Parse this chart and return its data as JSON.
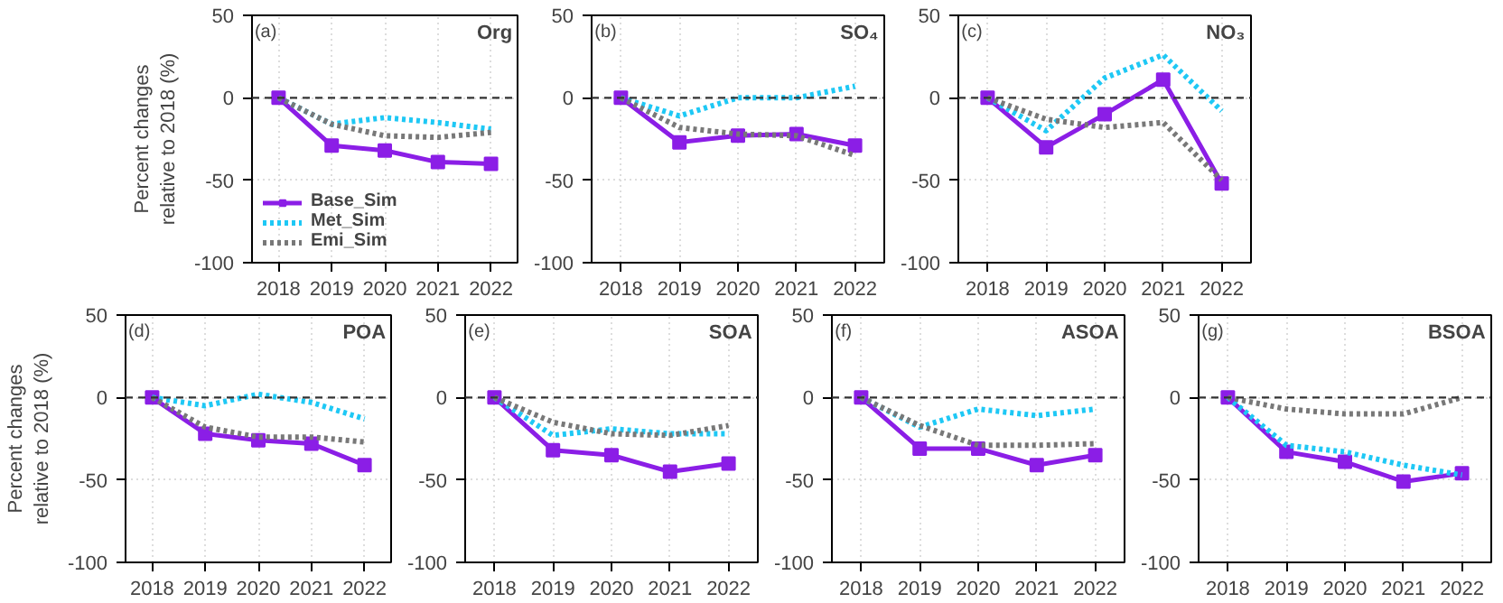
{
  "chart_data": [
    {
      "type": "line",
      "title": "Org",
      "annotations": [
        "(a)"
      ],
      "ylabel": "Percent changes relative to 2018 (%)",
      "categories": [
        "2018",
        "2019",
        "2020",
        "2021",
        "2022"
      ],
      "ylim": [
        -100,
        50
      ],
      "yticks": [
        -100,
        -50,
        0,
        50
      ],
      "grid": true,
      "legend": "bottom left",
      "ref_lines": [
        {
          "axis": "y",
          "value": 0,
          "color": "#333333",
          "line_style": "dashed"
        }
      ],
      "series": [
        {
          "name": "Base_Sim",
          "color": "#8b1ee6",
          "line_style": "solid",
          "marker": "square",
          "values": [
            0,
            -29,
            -32,
            -39,
            -40
          ]
        },
        {
          "name": "Met_Sim",
          "color": "#1ec8f5",
          "line_style": "dotted",
          "marker": "none",
          "values": [
            0,
            -16,
            -12,
            -15,
            -19
          ]
        },
        {
          "name": "Emi_Sim",
          "color": "#787878",
          "line_style": "dotted",
          "marker": "none",
          "values": [
            0,
            -16,
            -23,
            -24,
            -21
          ]
        }
      ]
    },
    {
      "type": "line",
      "title": "SO₄",
      "annotations": [
        "(b)"
      ],
      "categories": [
        "2018",
        "2019",
        "2020",
        "2021",
        "2022"
      ],
      "ylim": [
        -100,
        50
      ],
      "yticks": [
        -100,
        -50,
        0,
        50
      ],
      "grid": true,
      "ref_lines": [
        {
          "axis": "y",
          "value": 0,
          "color": "#333333",
          "line_style": "dashed"
        }
      ],
      "series": [
        {
          "color": "#8b1ee6",
          "line_style": "solid",
          "marker": "square",
          "values": [
            0,
            -27,
            -23,
            -22,
            -29
          ]
        },
        {
          "color": "#1ec8f5",
          "line_style": "dotted",
          "marker": "none",
          "values": [
            0,
            -11,
            0,
            0,
            7
          ]
        },
        {
          "color": "#787878",
          "line_style": "dotted",
          "marker": "none",
          "values": [
            0,
            -18,
            -22,
            -23,
            -35
          ]
        }
      ]
    },
    {
      "type": "line",
      "title": "NO₃",
      "annotations": [
        "(c)"
      ],
      "categories": [
        "2018",
        "2019",
        "2020",
        "2021",
        "2022"
      ],
      "ylim": [
        -100,
        50
      ],
      "yticks": [
        -100,
        -50,
        0,
        50
      ],
      "grid": true,
      "ref_lines": [
        {
          "axis": "y",
          "value": 0,
          "color": "#333333",
          "line_style": "dashed"
        }
      ],
      "series": [
        {
          "color": "#8b1ee6",
          "line_style": "solid",
          "marker": "square",
          "values": [
            0,
            -30,
            -10,
            11,
            -52
          ]
        },
        {
          "color": "#1ec8f5",
          "line_style": "dotted",
          "marker": "none",
          "values": [
            0,
            -20,
            12,
            26,
            -8
          ]
        },
        {
          "color": "#787878",
          "line_style": "dotted",
          "marker": "none",
          "values": [
            0,
            -13,
            -18,
            -15,
            -50
          ]
        }
      ]
    },
    {
      "type": "line",
      "title": "POA",
      "annotations": [
        "(d)"
      ],
      "ylabel": "Percent changes relative to 2018 (%)",
      "categories": [
        "2018",
        "2019",
        "2020",
        "2021",
        "2022"
      ],
      "ylim": [
        -100,
        50
      ],
      "yticks": [
        -100,
        -50,
        0,
        50
      ],
      "grid": true,
      "ref_lines": [
        {
          "axis": "y",
          "value": 0,
          "color": "#333333",
          "line_style": "dashed"
        }
      ],
      "series": [
        {
          "color": "#8b1ee6",
          "line_style": "solid",
          "marker": "square",
          "values": [
            0,
            -22,
            -26,
            -28,
            -41
          ]
        },
        {
          "color": "#1ec8f5",
          "line_style": "dotted",
          "marker": "none",
          "values": [
            0,
            -5,
            2,
            -3,
            -13
          ]
        },
        {
          "color": "#787878",
          "line_style": "dotted",
          "marker": "none",
          "values": [
            0,
            -18,
            -24,
            -24,
            -27
          ]
        }
      ]
    },
    {
      "type": "line",
      "title": "SOA",
      "annotations": [
        "(e)"
      ],
      "categories": [
        "2018",
        "2019",
        "2020",
        "2021",
        "2022"
      ],
      "ylim": [
        -100,
        50
      ],
      "yticks": [
        -100,
        -50,
        0,
        50
      ],
      "grid": true,
      "ref_lines": [
        {
          "axis": "y",
          "value": 0,
          "color": "#333333",
          "line_style": "dashed"
        }
      ],
      "series": [
        {
          "color": "#8b1ee6",
          "line_style": "solid",
          "marker": "square",
          "values": [
            0,
            -32,
            -35,
            -45,
            -40
          ]
        },
        {
          "color": "#1ec8f5",
          "line_style": "dotted",
          "marker": "none",
          "values": [
            0,
            -23,
            -19,
            -22,
            -22
          ]
        },
        {
          "color": "#787878",
          "line_style": "dotted",
          "marker": "none",
          "values": [
            0,
            -15,
            -22,
            -23,
            -17
          ]
        }
      ]
    },
    {
      "type": "line",
      "title": "ASOA",
      "annotations": [
        "(f)"
      ],
      "categories": [
        "2018",
        "2019",
        "2020",
        "2021",
        "2022"
      ],
      "ylim": [
        -100,
        50
      ],
      "yticks": [
        -100,
        -50,
        0,
        50
      ],
      "grid": true,
      "ref_lines": [
        {
          "axis": "y",
          "value": 0,
          "color": "#333333",
          "line_style": "dashed"
        }
      ],
      "series": [
        {
          "color": "#8b1ee6",
          "line_style": "solid",
          "marker": "square",
          "values": [
            0,
            -31,
            -31,
            -41,
            -35
          ]
        },
        {
          "color": "#1ec8f5",
          "line_style": "dotted",
          "marker": "none",
          "values": [
            0,
            -18,
            -7,
            -11,
            -7
          ]
        },
        {
          "color": "#787878",
          "line_style": "dotted",
          "marker": "none",
          "values": [
            0,
            -17,
            -29,
            -29,
            -28
          ]
        }
      ]
    },
    {
      "type": "line",
      "title": "BSOA",
      "annotations": [
        "(g)"
      ],
      "categories": [
        "2018",
        "2019",
        "2020",
        "2021",
        "2022"
      ],
      "ylim": [
        -100,
        50
      ],
      "yticks": [
        -100,
        -50,
        0,
        50
      ],
      "grid": true,
      "ref_lines": [
        {
          "axis": "y",
          "value": 0,
          "color": "#333333",
          "line_style": "dashed"
        }
      ],
      "series": [
        {
          "color": "#8b1ee6",
          "line_style": "solid",
          "marker": "square",
          "values": [
            0,
            -33,
            -39,
            -51,
            -46
          ]
        },
        {
          "color": "#1ec8f5",
          "line_style": "dotted",
          "marker": "none",
          "values": [
            0,
            -29,
            -33,
            -41,
            -47
          ]
        },
        {
          "color": "#787878",
          "line_style": "dotted",
          "marker": "none",
          "values": [
            0,
            -7,
            -10,
            -10,
            0
          ]
        }
      ]
    }
  ]
}
